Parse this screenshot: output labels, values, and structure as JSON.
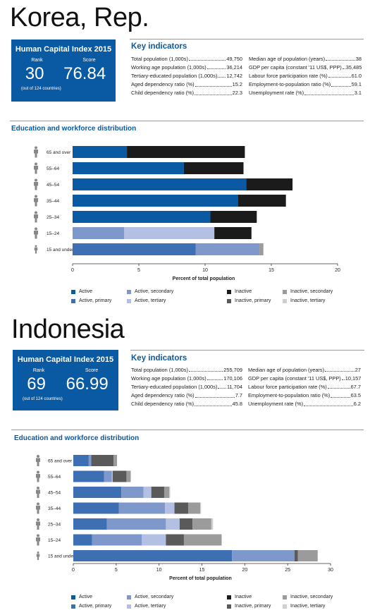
{
  "colors": {
    "active": "#0a5aa3",
    "active_primary": "#3f6fb3",
    "active_secondary": "#7f98cc",
    "active_tertiary": "#b3bfe3",
    "inactive": "#1b1b1b",
    "inactive_primary": "#5a5a5a",
    "inactive_secondary": "#9b9b9b",
    "inactive_tertiary": "#cfcfcf"
  },
  "icons": [
    "person-silhouette-icon"
  ],
  "countries": [
    {
      "name": "Korea, Rep.",
      "hci": {
        "title": "Human Capital Index 2015",
        "rank_label": "Rank",
        "score_label": "Score",
        "rank": "30",
        "score": "76.84",
        "note": "(out of 124 countries)"
      },
      "key_indicators": {
        "title": "Key indicators",
        "left": [
          {
            "label": "Total population (1,000s)",
            "value": "49,750"
          },
          {
            "label": "Working age population (1,000s)",
            "value": "36,214"
          },
          {
            "label": "Tertiary-educated population (1,000s)",
            "value": "12,742"
          },
          {
            "label": "Aged dependency ratio (%)",
            "value": "15.2"
          },
          {
            "label": "Child dependency ratio (%)",
            "value": "22.3"
          }
        ],
        "right": [
          {
            "label": "Median age of population (years)",
            "value": "38"
          },
          {
            "label": "GDP per capita (constant '11 US$, PPP)",
            "value": "35,485"
          },
          {
            "label": "Labour force participation rate (%)",
            "value": "61.0"
          },
          {
            "label": "Employment-to-population ratio (%)",
            "value": "59.1"
          },
          {
            "label": "Unemployment rate (%)",
            "value": "3.1"
          }
        ]
      },
      "section_title": "Education and workforce distribution",
      "chart_data": {
        "type": "bar",
        "orientation": "horizontal",
        "stacked": true,
        "categories": [
          "65 and over",
          "55–64",
          "45–54",
          "35–44",
          "25–34",
          "15–24",
          "15 and under"
        ],
        "series": [
          {
            "name": "Active",
            "color_key": "active",
            "values": [
              4.1,
              8.4,
              13.1,
              12.5,
              10.4,
              0,
              0
            ]
          },
          {
            "name": "Active, primary",
            "color_key": "active_primary",
            "values": [
              0,
              0,
              0,
              0,
              0,
              0,
              9.3
            ]
          },
          {
            "name": "Active, secondary",
            "color_key": "active_secondary",
            "values": [
              0,
              0,
              0,
              0,
              0,
              3.9,
              4.8
            ]
          },
          {
            "name": "Active, tertiary",
            "color_key": "active_tertiary",
            "values": [
              0,
              0,
              0,
              0,
              0,
              6.8,
              0
            ]
          },
          {
            "name": "Inactive",
            "color_key": "inactive",
            "values": [
              8.9,
              4.5,
              3.5,
              3.6,
              3.5,
              2.8,
              0
            ]
          },
          {
            "name": "Inactive, primary",
            "color_key": "inactive_primary",
            "values": [
              0,
              0,
              0,
              0,
              0,
              0,
              0
            ]
          },
          {
            "name": "Inactive, secondary",
            "color_key": "inactive_secondary",
            "values": [
              0,
              0,
              0,
              0,
              0,
              0,
              0.3
            ]
          },
          {
            "name": "Inactive, tertiary",
            "color_key": "inactive_tertiary",
            "values": [
              0,
              0,
              0,
              0,
              0,
              0,
              0
            ]
          }
        ],
        "xlim": [
          0,
          20
        ],
        "xticks": [
          0,
          5,
          10,
          15,
          20
        ],
        "xlabel": "Percent of total population",
        "legend_position": "bottom"
      },
      "legend": [
        {
          "label": "Active",
          "color_key": "active"
        },
        {
          "label": "Active, secondary",
          "color_key": "active_secondary"
        },
        {
          "label": "Inactive",
          "color_key": "inactive"
        },
        {
          "label": "Inactive, secondary",
          "color_key": "inactive_secondary"
        },
        {
          "label": "Active, primary",
          "color_key": "active_primary"
        },
        {
          "label": "Active, tertiary",
          "color_key": "active_tertiary"
        },
        {
          "label": "Inactive, primary",
          "color_key": "inactive_primary"
        },
        {
          "label": "Inactive, tertiary",
          "color_key": "inactive_tertiary"
        }
      ]
    },
    {
      "name": "Indonesia",
      "hci": {
        "title": "Human Capital Index 2015",
        "rank_label": "Rank",
        "score_label": "Score",
        "rank": "69",
        "score": "66.99",
        "note": "(out of 124 countries)"
      },
      "key_indicators": {
        "title": "Key indicators",
        "left": [
          {
            "label": "Total population (1,000s)",
            "value": "255,709"
          },
          {
            "label": "Working age population (1,000s)",
            "value": "170,106"
          },
          {
            "label": "Tertiary-educated population (1,000s)",
            "value": "11,704"
          },
          {
            "label": "Aged dependency ratio (%)",
            "value": "7.7"
          },
          {
            "label": "Child dependency ratio (%)",
            "value": "45.8"
          }
        ],
        "right": [
          {
            "label": "Median age of population (years)",
            "value": "27"
          },
          {
            "label": "GDP per capita (constant '11 US$, PPP)",
            "value": "10,157"
          },
          {
            "label": "Labour force participation rate (%)",
            "value": "67.7"
          },
          {
            "label": "Employment-to-population ratio (%)",
            "value": "63.5"
          },
          {
            "label": "Unemployment rate (%)",
            "value": "6.2"
          }
        ]
      },
      "section_title": "Education and workforce distribution",
      "chart_data": {
        "type": "bar",
        "orientation": "horizontal",
        "stacked": true,
        "categories": [
          "65 and over",
          "55–64",
          "45–54",
          "35–44",
          "25–34",
          "15–24",
          "15 and under"
        ],
        "series": [
          {
            "name": "Active",
            "color_key": "active",
            "values": [
              0,
              0,
              0,
              0,
              0,
              0,
              0
            ]
          },
          {
            "name": "Active, primary",
            "color_key": "active_primary",
            "values": [
              1.8,
              3.6,
              5.6,
              5.3,
              3.9,
              2.2,
              18.5
            ]
          },
          {
            "name": "Active, secondary",
            "color_key": "active_secondary",
            "values": [
              0.3,
              0.9,
              2.6,
              5.4,
              6.9,
              5.8,
              7.3
            ]
          },
          {
            "name": "Active, tertiary",
            "color_key": "active_tertiary",
            "values": [
              0,
              0.1,
              0.9,
              1.1,
              1.6,
              2.8,
              0
            ]
          },
          {
            "name": "Inactive",
            "color_key": "inactive",
            "values": [
              0,
              0,
              0,
              0,
              0,
              0,
              0
            ]
          },
          {
            "name": "Inactive, primary",
            "color_key": "inactive_primary",
            "values": [
              2.6,
              1.6,
              1.5,
              1.6,
              1.5,
              2.1,
              0.4
            ]
          },
          {
            "name": "Inactive, secondary",
            "color_key": "inactive_secondary",
            "values": [
              0.4,
              0.5,
              0.6,
              1.4,
              2.2,
              4.4,
              2.3
            ]
          },
          {
            "name": "Inactive, tertiary",
            "color_key": "inactive_tertiary",
            "values": [
              0,
              0,
              0.1,
              0.1,
              0.2,
              0,
              0
            ]
          }
        ],
        "xlim": [
          0,
          30
        ],
        "xticks": [
          0,
          5,
          10,
          15,
          20,
          25,
          30
        ],
        "xlabel": "Percent of total population",
        "legend_position": "bottom"
      },
      "legend": [
        {
          "label": "Active",
          "color_key": "active"
        },
        {
          "label": "Active, secondary",
          "color_key": "active_secondary"
        },
        {
          "label": "Inactive",
          "color_key": "inactive"
        },
        {
          "label": "Inactive, secondary",
          "color_key": "inactive_secondary"
        },
        {
          "label": "Active, primary",
          "color_key": "active_primary"
        },
        {
          "label": "Active, tertiary",
          "color_key": "active_tertiary"
        },
        {
          "label": "Inactive, primary",
          "color_key": "inactive_primary"
        },
        {
          "label": "Inactive, tertiary",
          "color_key": "inactive_tertiary"
        }
      ]
    }
  ]
}
